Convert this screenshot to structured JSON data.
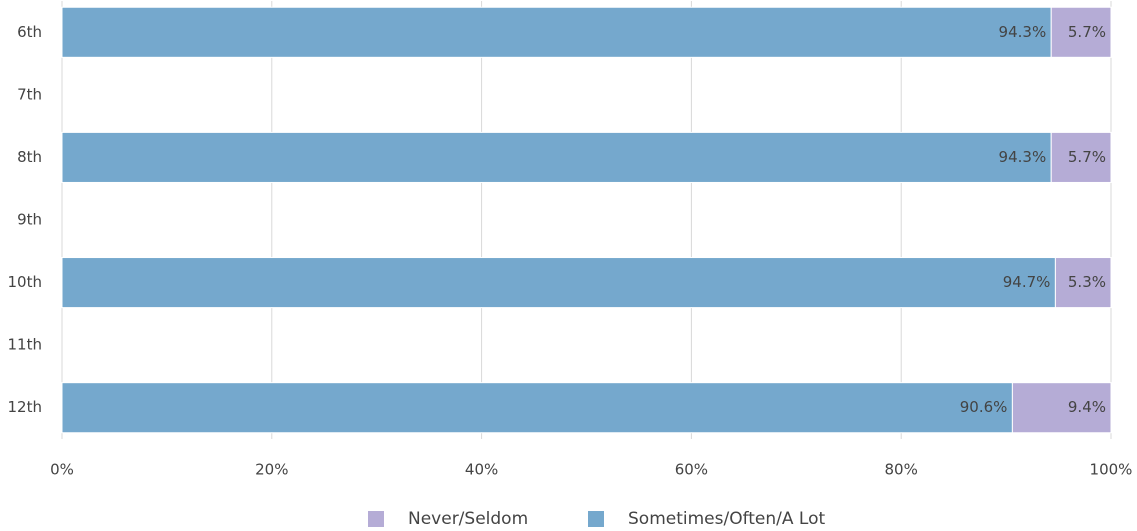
{
  "chart_data": {
    "type": "stacked_barh",
    "categories": [
      "6th",
      "7th",
      "8th",
      "9th",
      "10th",
      "11th",
      "12th"
    ],
    "series": [
      {
        "name": "Sometimes/Often/A Lot",
        "color": "#75a8cd",
        "values": [
          94.3,
          null,
          94.3,
          null,
          94.7,
          null,
          90.6
        ],
        "value_labels": [
          "94.3%",
          null,
          "94.3%",
          null,
          "94.7%",
          null,
          "90.6%"
        ]
      },
      {
        "name": "Never/Seldom",
        "color": "#b5acd6",
        "values": [
          5.7,
          null,
          5.7,
          null,
          5.3,
          null,
          9.4
        ],
        "value_labels": [
          "5.7%",
          null,
          "5.7%",
          null,
          "5.3%",
          null,
          "9.4%"
        ]
      }
    ],
    "xlim": [
      0,
      100
    ],
    "xticks": [
      {
        "value": 0,
        "label": "0%"
      },
      {
        "value": 20,
        "label": "20%"
      },
      {
        "value": 40,
        "label": "40%"
      },
      {
        "value": 60,
        "label": "60%"
      },
      {
        "value": 80,
        "label": "80%"
      },
      {
        "value": 100,
        "label": "100%"
      }
    ],
    "grid": true
  }
}
